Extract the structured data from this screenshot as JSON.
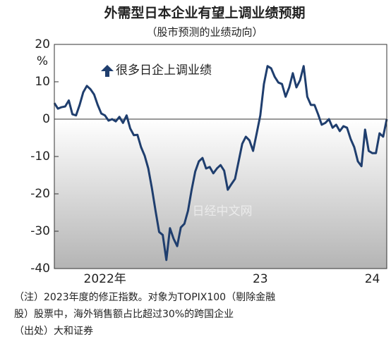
{
  "chart_data": {
    "type": "line",
    "title": "外需型日本企业有望上调业绩预期",
    "subtitle": "（股市预测的业绩动向）",
    "y_unit": "%",
    "annotation": "很多日企上调业绩",
    "watermark": "日经中文网",
    "notes": [
      "（注）2023年度的修正指数。对象为TOPIX100（剔除金融",
      "股）股票中，海外销售额占比超过30%的跨国企业",
      "（出处）大和证券"
    ],
    "categories": [
      null,
      null,
      null,
      null,
      null,
      null,
      null,
      null,
      null,
      null,
      null,
      null,
      null,
      null,
      "2022年",
      null,
      null,
      null,
      null,
      null,
      null,
      null,
      null,
      null,
      null,
      null,
      null,
      null,
      null,
      null,
      null,
      null,
      null,
      null,
      null,
      null,
      null,
      null,
      null,
      null,
      null,
      null,
      null,
      null,
      null,
      null,
      null,
      null,
      null,
      null,
      null,
      null,
      null,
      null,
      null,
      null,
      null,
      "23",
      null,
      null,
      null,
      null,
      null,
      null,
      null,
      null,
      null,
      null,
      null,
      null,
      null,
      null,
      null,
      null,
      null,
      null,
      null,
      null,
      null,
      null,
      null,
      null,
      null,
      null,
      null,
      null,
      null,
      null,
      "24",
      null,
      null,
      null,
      null
    ],
    "series": [
      {
        "color": "#1f3e6e",
        "values": [
          4.3,
          2.8,
          3.2,
          3.4,
          5,
          1.3,
          1,
          3.8,
          7.2,
          8.9,
          8,
          6.6,
          3.8,
          1.5,
          1,
          -0.4,
          0,
          -0.6,
          0.6,
          -1,
          1,
          -2.5,
          -4.3,
          -4.2,
          -7.5,
          -9.8,
          -13.2,
          -18.5,
          -24.5,
          -30.2,
          -31,
          -37.7,
          -29.2,
          -32,
          -34,
          -29,
          -28,
          -24.5,
          -18.9,
          -14,
          -11.3,
          -10.4,
          -13.2,
          -12.8,
          -14.5,
          -13.2,
          -12.3,
          -13.8,
          -18.9,
          -17.4,
          -16,
          -11.3,
          -6.6,
          -4.7,
          -5.7,
          -8.5,
          -3.8,
          1,
          9.4,
          14.2,
          13.6,
          11.3,
          9.8,
          9.4,
          6,
          8.5,
          12.3,
          8.5,
          10.4,
          14.2,
          6,
          3.8,
          3.8,
          1.3,
          -1.5,
          -1,
          0,
          -2.3,
          -1.5,
          -3.2,
          -1.9,
          -2.3,
          -5.3,
          -7.5,
          -11.3,
          -12.6,
          -2.8,
          -8.5,
          -9.1,
          -9.1,
          -3.8,
          -4.7,
          0
        ]
      }
    ],
    "ylim": [
      -40,
      20
    ],
    "yticks": [
      -40,
      -30,
      -20,
      -10,
      0,
      10,
      20
    ]
  }
}
